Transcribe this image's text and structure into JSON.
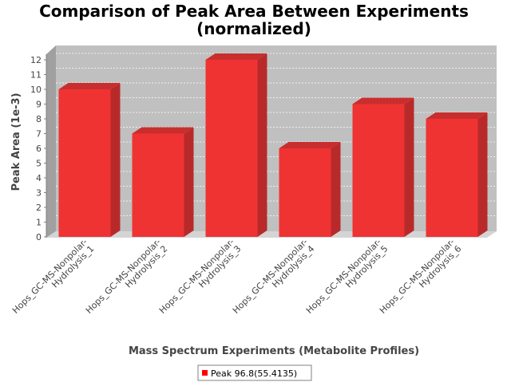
{
  "chart_data": {
    "type": "bar",
    "title_line1": "Comparison of Peak Area Between Experiments",
    "title_line2": "(normalized)",
    "xlabel": "Mass Spectrum Experiments (Metabolite Profiles)",
    "ylabel": "Peak Area (1e-3)",
    "ylim": [
      0,
      12.5
    ],
    "yticks": [
      0,
      1,
      2,
      3,
      4,
      5,
      6,
      7,
      8,
      9,
      10,
      11,
      12
    ],
    "grid": true,
    "legend_position": "bottom",
    "categories": [
      [
        "Hops_GC-MS-Nonpolar-",
        "Hydrolysis_1"
      ],
      [
        "Hops_GC-MS-Nonpolar-",
        "Hydrolysis_2"
      ],
      [
        "Hops_GC-MS-Nonpolar-",
        "Hydrolysis_3"
      ],
      [
        "Hops_GC-MS-Nonpolar-",
        "Hydrolysis_4"
      ],
      [
        "Hops_GC-MS-Nonpolar-",
        "Hydrolysis_5"
      ],
      [
        "Hops_GC-MS-Nonpolar-",
        "Hydrolysis_6"
      ]
    ],
    "series": [
      {
        "name": "Peak 96.8(55.4135)",
        "color": "#ff0000",
        "values": [
          10,
          7,
          12,
          6,
          9,
          8
        ]
      }
    ]
  }
}
